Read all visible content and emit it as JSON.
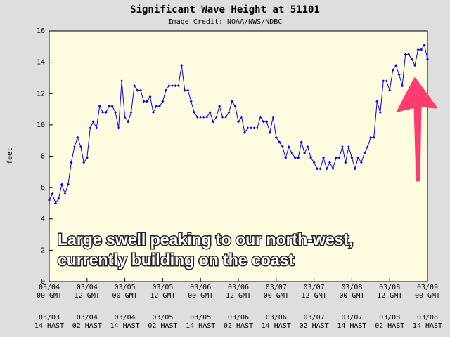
{
  "chart_data": {
    "type": "line",
    "title": "Significant Wave Height at 51101",
    "subtitle": "Image Credit: NOAA/NWS/NDBC",
    "y_label": "feet",
    "annotation": [
      "Large swell peaking to our north-west,",
      "currently building on the coast"
    ],
    "x": [
      0,
      1,
      2,
      3,
      4,
      5,
      6,
      7,
      8,
      9,
      10,
      11,
      12,
      13,
      14,
      15,
      16,
      17,
      18,
      19,
      20,
      21,
      22,
      23,
      24,
      25,
      26,
      27,
      28,
      29,
      30,
      31,
      32,
      33,
      34,
      35,
      36,
      37,
      38,
      39,
      40,
      41,
      42,
      43,
      44,
      45,
      46,
      47,
      48,
      49,
      50,
      51,
      52,
      53,
      54,
      55,
      56,
      57,
      58,
      59,
      60,
      61,
      62,
      63,
      64,
      65,
      66,
      67,
      68,
      69,
      70,
      71,
      72,
      73,
      74,
      75,
      76,
      77,
      78,
      79,
      80,
      81,
      82,
      83,
      84,
      85,
      86,
      87,
      88,
      89,
      90,
      91,
      92,
      93,
      94,
      95,
      96,
      97,
      98,
      99,
      100,
      101,
      102,
      103,
      104,
      105,
      106,
      107,
      108,
      109,
      110,
      111,
      112,
      113,
      114,
      115,
      116,
      117,
      118,
      119,
      120
    ],
    "series": [
      {
        "color": "#0000ff",
        "values": [
          5.2,
          5.6,
          5.0,
          5.3,
          6.2,
          5.6,
          6.2,
          7.6,
          8.6,
          9.2,
          8.6,
          7.6,
          7.9,
          9.8,
          10.2,
          9.8,
          11.2,
          10.8,
          10.8,
          11.2,
          11.2,
          10.8,
          9.8,
          12.8,
          10.5,
          10.2,
          10.8,
          12.5,
          12.2,
          12.2,
          11.5,
          11.5,
          11.8,
          10.8,
          11.2,
          11.2,
          11.5,
          12.2,
          12.5,
          12.5,
          12.5,
          12.5,
          13.8,
          12.2,
          12.2,
          11.5,
          10.8,
          10.5,
          10.5,
          10.5,
          10.5,
          10.8,
          10.2,
          10.5,
          11.2,
          10.5,
          10.5,
          10.8,
          11.5,
          11.2,
          10.2,
          10.5,
          9.5,
          9.8,
          9.8,
          9.8,
          9.8,
          10.5,
          10.2,
          10.2,
          9.5,
          10.5,
          9.2,
          8.9,
          8.6,
          7.9,
          8.6,
          8.2,
          7.9,
          7.9,
          8.9,
          8.2,
          8.6,
          7.9,
          7.6,
          7.2,
          7.2,
          7.9,
          7.2,
          7.6,
          7.2,
          7.9,
          7.9,
          8.6,
          7.6,
          8.6,
          7.9,
          7.2,
          7.9,
          7.6,
          8.2,
          8.6,
          9.2,
          9.2,
          11.5,
          10.8,
          12.8,
          12.8,
          12.2,
          13.5,
          13.8,
          13.2,
          12.5,
          14.5,
          14.5,
          14.2,
          13.8,
          14.8,
          14.8,
          15.1,
          14.2
        ]
      }
    ],
    "xlim": [
      0,
      120
    ],
    "xticks": [
      {
        "value": 0,
        "label": "03/04\n00 GMT"
      },
      {
        "value": 12,
        "label": "03/04\n12 GMT"
      },
      {
        "value": 24,
        "label": "03/05\n00 GMT"
      },
      {
        "value": 36,
        "label": "03/05\n12 GMT"
      },
      {
        "value": 48,
        "label": "03/06\n00 GMT"
      },
      {
        "value": 60,
        "label": "03/06\n12 GMT"
      },
      {
        "value": 72,
        "label": "03/07\n00 GMT"
      },
      {
        "value": 84,
        "label": "03/07\n12 GMT"
      },
      {
        "value": 96,
        "label": "03/08\n00 GMT"
      },
      {
        "value": 108,
        "label": "03/08\n12 GMT"
      },
      {
        "value": 120,
        "label": "03/09\n00 GMT"
      }
    ],
    "xticks_local": [
      "03/03\n14 HAST",
      "03/04\n02 HAST",
      "03/04\n14 HAST",
      "03/05\n02 HAST",
      "03/05\n14 HAST",
      "03/06\n02 HAST",
      "03/06\n14 HAST",
      "03/07\n02 HAST",
      "03/07\n14 HAST",
      "03/08\n02 HAST",
      "03/08\n14 HAST"
    ],
    "ylim": [
      0,
      16
    ],
    "yticks": [
      0,
      2,
      4,
      6,
      8,
      10,
      12,
      14,
      16
    ]
  }
}
